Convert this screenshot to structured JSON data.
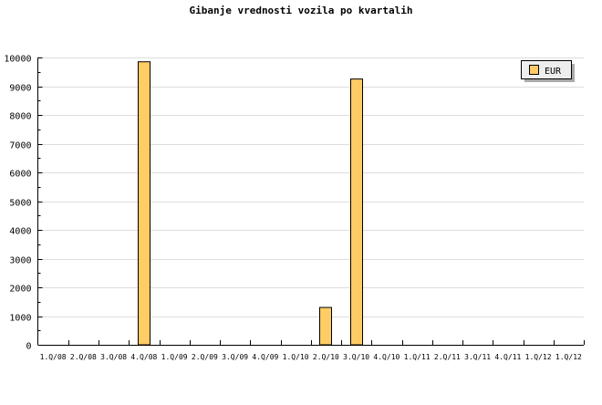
{
  "chart_data": {
    "type": "bar",
    "title": "Gibanje vrednosti vozila po kvartalih",
    "xlabel": "",
    "ylabel": "",
    "categories": [
      "1.Q/08",
      "2.Q/08",
      "3.Q/08",
      "4.Q/08",
      "1.Q/09",
      "2.Q/09",
      "3.Q/09",
      "4.Q/09",
      "1.Q/10",
      "2.Q/10",
      "3.Q/10",
      "4.Q/10",
      "1.Q/11",
      "2.Q/11",
      "3.Q/11",
      "4.Q/11",
      "1.Q/12",
      "1.Q/12"
    ],
    "series": [
      {
        "name": "EUR",
        "color": "#ffcc66",
        "values": [
          0,
          0,
          0,
          9850,
          0,
          0,
          0,
          0,
          0,
          1300,
          9250,
          0,
          0,
          0,
          0,
          0,
          0,
          0
        ]
      }
    ],
    "ylim": [
      0,
      10000
    ],
    "yticks": [
      0,
      1000,
      2000,
      3000,
      4000,
      5000,
      6000,
      7000,
      8000,
      9000,
      10000
    ],
    "grid": true,
    "legend": "top-right"
  }
}
